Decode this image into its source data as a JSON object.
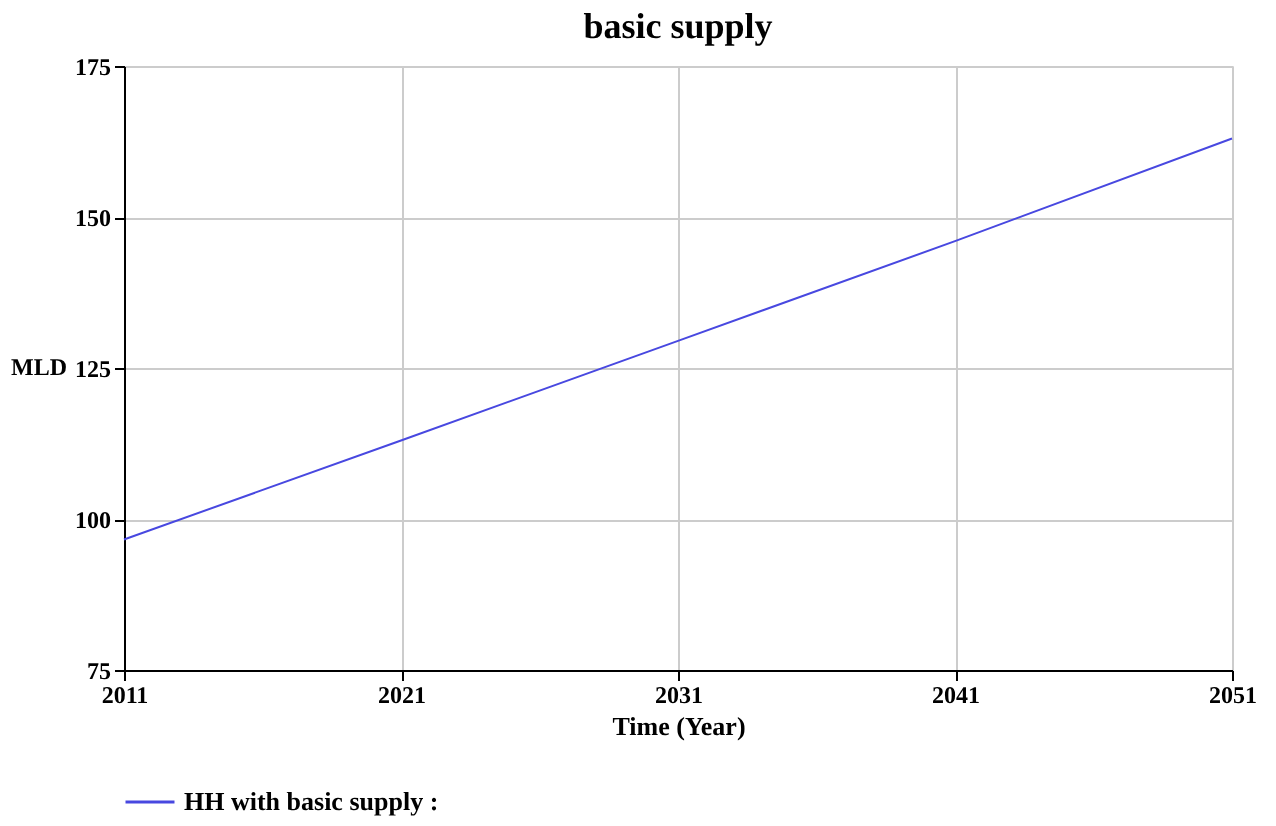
{
  "chart_data": {
    "type": "line",
    "title": "basic supply",
    "xlabel": "Time (Year)",
    "ylabel": "MLD",
    "x": [
      2011,
      2021,
      2031,
      2041,
      2051
    ],
    "series": [
      {
        "name": "HH with basic supply :",
        "color": "#4848e0",
        "values": [
          96.6,
          113,
          129.5,
          146,
          163
        ]
      }
    ],
    "xlim": [
      2011,
      2051
    ],
    "xticks": [
      2011,
      2021,
      2031,
      2041,
      2051
    ],
    "ylim": [
      75,
      175
    ],
    "yticks": [
      75,
      100,
      125,
      150,
      175
    ],
    "grid": true,
    "legend": "bottom",
    "marker": "none",
    "line_style": "solid"
  }
}
